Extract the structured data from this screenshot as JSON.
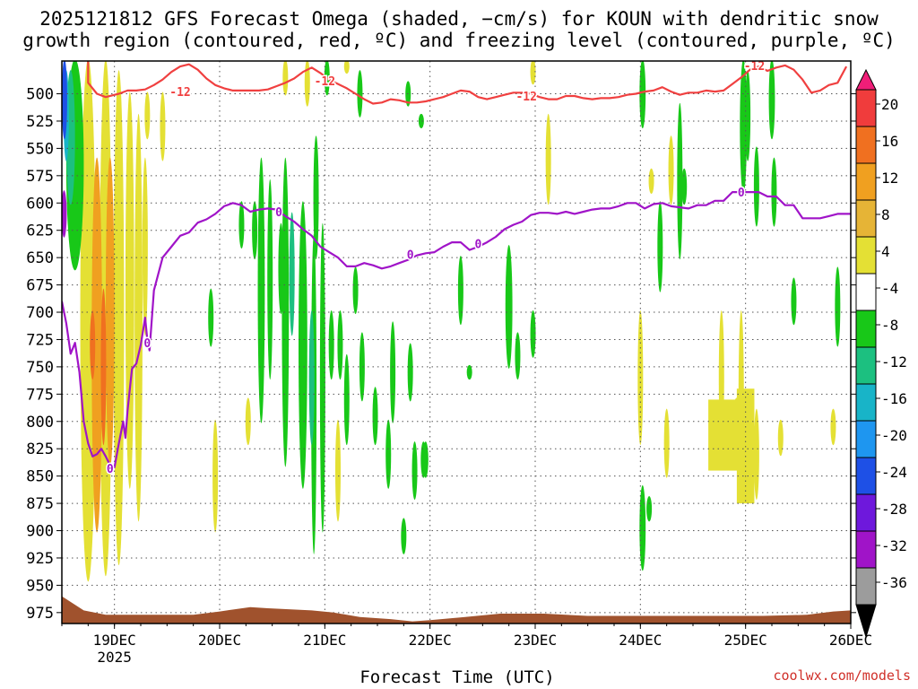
{
  "title_line1": "2025121812 GFS Forecast Omega (shaded, −cm/s) for KOUN with dendritic snow",
  "title_line2": "growth region (contoured, red, ºC) and freezing level (contoured, purple, ºC)",
  "xaxis_title": "Forecast Time (UTC)",
  "credit": "coolwx.com/models",
  "chart_data": {
    "type": "heatmap",
    "title": "2025121812 GFS Forecast Omega (shaded, −cm/s) for KOUN with dendritic snow growth region (contoured, red, ºC) and freezing level (contoured, purple, ºC)",
    "xlabel": "Forecast Time (UTC)",
    "ylabel": "",
    "x_ticks": [
      {
        "label": "19DEC",
        "sub": "2025",
        "t": 12
      },
      {
        "label": "20DEC",
        "sub": "",
        "t": 36
      },
      {
        "label": "21DEC",
        "sub": "",
        "t": 60
      },
      {
        "label": "22DEC",
        "sub": "",
        "t": 84
      },
      {
        "label": "23DEC",
        "sub": "",
        "t": 108
      },
      {
        "label": "24DEC",
        "sub": "",
        "t": 132
      },
      {
        "label": "25DEC",
        "sub": "",
        "t": 156
      },
      {
        "label": "26DEC",
        "sub": "",
        "t": 180
      }
    ],
    "xlim_hours": [
      0,
      180
    ],
    "y_ticks": [
      500,
      525,
      550,
      575,
      600,
      625,
      650,
      675,
      700,
      725,
      750,
      775,
      800,
      825,
      850,
      875,
      900,
      925,
      950,
      975
    ],
    "ylim_hpa": [
      470,
      985
    ],
    "grid": true,
    "colorbar": {
      "labels": [
        "20",
        "16",
        "12",
        "8",
        "4",
        "-4",
        "-8",
        "-12",
        "-16",
        "-20",
        "-24",
        "-28",
        "-32",
        "-36"
      ],
      "colors": [
        "#f01e78",
        "#f03c3c",
        "#f07020",
        "#f0a020",
        "#e6b436",
        "#e4e034",
        "#ffffff",
        "#18c818",
        "#1cc080",
        "#18b4c8",
        "#1e96f0",
        "#1e50e6",
        "#6e18dc",
        "#a014c8",
        "#9c9c9c",
        "#000000"
      ],
      "colors_note": "top triangle to bottom triangle"
    },
    "series": [
      {
        "name": "dendritic snow growth region",
        "color": "#f04040",
        "labels": [
          "-12",
          "-12",
          "-12",
          "-12"
        ],
        "points": [
          [
            6,
            468
          ],
          [
            6,
            490
          ],
          [
            8,
            500
          ],
          [
            10,
            503
          ],
          [
            13,
            500
          ],
          [
            15,
            497
          ],
          [
            17,
            497
          ],
          [
            19,
            496
          ],
          [
            21,
            492
          ],
          [
            23,
            487
          ],
          [
            25,
            480
          ],
          [
            27,
            475
          ],
          [
            29,
            473
          ],
          [
            31,
            478
          ],
          [
            33,
            486
          ],
          [
            35,
            492
          ],
          [
            37,
            495
          ],
          [
            39,
            497
          ],
          [
            41,
            497
          ],
          [
            43,
            497
          ],
          [
            45,
            497
          ],
          [
            47,
            496
          ],
          [
            49,
            493
          ],
          [
            51,
            490
          ],
          [
            53,
            486
          ],
          [
            55,
            480
          ],
          [
            57,
            476
          ],
          [
            59,
            481
          ],
          [
            61,
            487
          ],
          [
            63,
            491
          ],
          [
            65,
            495
          ],
          [
            67,
            500
          ],
          [
            69,
            505
          ],
          [
            71,
            509
          ],
          [
            73,
            508
          ],
          [
            75,
            505
          ],
          [
            77,
            506
          ],
          [
            79,
            508
          ],
          [
            81,
            508
          ],
          [
            83,
            507
          ],
          [
            85,
            505
          ],
          [
            87,
            503
          ],
          [
            89,
            500
          ],
          [
            91,
            497
          ],
          [
            93,
            498
          ],
          [
            95,
            503
          ],
          [
            97,
            505
          ],
          [
            99,
            503
          ],
          [
            101,
            501
          ],
          [
            103,
            499
          ],
          [
            105,
            499
          ],
          [
            107,
            500
          ],
          [
            109,
            503
          ],
          [
            111,
            505
          ],
          [
            113,
            505
          ],
          [
            115,
            502
          ],
          [
            117,
            502
          ],
          [
            119,
            504
          ],
          [
            121,
            505
          ],
          [
            123,
            504
          ],
          [
            125,
            504
          ],
          [
            127,
            503
          ],
          [
            129,
            501
          ],
          [
            131,
            500
          ],
          [
            133,
            498
          ],
          [
            135,
            497
          ],
          [
            137,
            494
          ],
          [
            139,
            498
          ],
          [
            141,
            501
          ],
          [
            143,
            499
          ],
          [
            145,
            499
          ],
          [
            147,
            497
          ],
          [
            149,
            498
          ],
          [
            151,
            497
          ],
          [
            153,
            491
          ],
          [
            155,
            485
          ],
          [
            157,
            478
          ],
          [
            159,
            475
          ],
          [
            161,
            479
          ],
          [
            163,
            476
          ],
          [
            165,
            474
          ],
          [
            167,
            478
          ],
          [
            169,
            487
          ],
          [
            171,
            499
          ],
          [
            173,
            497
          ],
          [
            175,
            492
          ],
          [
            177,
            490
          ],
          [
            179,
            475
          ]
        ]
      },
      {
        "name": "freezing level",
        "color": "#a014c8",
        "labels": [
          "0",
          "0",
          "0",
          "0",
          "0",
          "0"
        ],
        "points": [
          [
            0,
            690
          ],
          [
            1,
            710
          ],
          [
            2,
            738
          ],
          [
            3,
            728
          ],
          [
            4,
            755
          ],
          [
            5,
            800
          ],
          [
            6,
            820
          ],
          [
            7,
            832
          ],
          [
            8,
            830
          ],
          [
            9,
            825
          ],
          [
            10,
            832
          ],
          [
            11,
            840
          ],
          [
            12,
            842
          ],
          [
            13,
            820
          ],
          [
            14,
            800
          ],
          [
            14.5,
            815
          ],
          [
            15,
            790
          ],
          [
            16,
            752
          ],
          [
            17,
            747
          ],
          [
            18,
            730
          ],
          [
            19,
            705
          ],
          [
            19.5,
            725
          ],
          [
            20,
            735
          ],
          [
            21,
            680
          ],
          [
            23,
            650
          ],
          [
            25,
            640
          ],
          [
            27,
            630
          ],
          [
            29,
            627
          ],
          [
            31,
            618
          ],
          [
            33,
            615
          ],
          [
            35,
            610
          ],
          [
            37,
            603
          ],
          [
            39,
            600
          ],
          [
            41,
            602
          ],
          [
            43,
            608
          ],
          [
            45,
            606
          ],
          [
            47,
            605
          ],
          [
            49,
            606
          ],
          [
            51,
            612
          ],
          [
            53,
            617
          ],
          [
            55,
            624
          ],
          [
            57,
            630
          ],
          [
            59,
            640
          ],
          [
            61,
            645
          ],
          [
            63,
            650
          ],
          [
            65,
            658
          ],
          [
            67,
            658
          ],
          [
            69,
            655
          ],
          [
            71,
            657
          ],
          [
            73,
            660
          ],
          [
            75,
            658
          ],
          [
            77,
            655
          ],
          [
            79,
            652
          ],
          [
            81,
            648
          ],
          [
            83,
            646
          ],
          [
            85,
            645
          ],
          [
            87,
            640
          ],
          [
            89,
            636
          ],
          [
            91,
            636
          ],
          [
            93,
            643
          ],
          [
            95,
            640
          ],
          [
            97,
            636
          ],
          [
            99,
            631
          ],
          [
            101,
            624
          ],
          [
            103,
            620
          ],
          [
            105,
            617
          ],
          [
            107,
            611
          ],
          [
            109,
            609
          ],
          [
            111,
            609
          ],
          [
            113,
            610
          ],
          [
            115,
            608
          ],
          [
            117,
            610
          ],
          [
            119,
            608
          ],
          [
            121,
            606
          ],
          [
            123,
            605
          ],
          [
            125,
            605
          ],
          [
            127,
            603
          ],
          [
            129,
            600
          ],
          [
            131,
            600
          ],
          [
            133,
            605
          ],
          [
            135,
            601
          ],
          [
            137,
            600
          ],
          [
            139,
            603
          ],
          [
            141,
            604
          ],
          [
            143,
            605
          ],
          [
            145,
            602
          ],
          [
            147,
            602
          ],
          [
            149,
            598
          ],
          [
            151,
            598
          ],
          [
            153,
            590
          ],
          [
            155,
            590
          ],
          [
            157,
            590
          ],
          [
            159,
            590
          ],
          [
            161,
            594
          ],
          [
            163,
            594
          ],
          [
            165,
            602
          ],
          [
            167,
            602
          ],
          [
            169,
            614
          ],
          [
            171,
            614
          ],
          [
            173,
            614
          ],
          [
            175,
            612
          ],
          [
            177,
            610
          ],
          [
            179,
            610
          ],
          [
            180,
            610
          ]
        ]
      },
      {
        "name": "terrain",
        "color": "#a0522d",
        "points": [
          [
            0,
            960
          ],
          [
            5,
            973
          ],
          [
            10,
            977
          ],
          [
            20,
            977
          ],
          [
            30,
            977
          ],
          [
            36,
            974
          ],
          [
            43,
            970
          ],
          [
            47,
            971
          ],
          [
            57,
            973
          ],
          [
            62,
            975
          ],
          [
            68,
            979
          ],
          [
            75,
            981
          ],
          [
            80,
            983
          ],
          [
            84,
            982
          ],
          [
            92,
            979
          ],
          [
            100,
            976
          ],
          [
            110,
            976
          ],
          [
            120,
            978
          ],
          [
            130,
            978
          ],
          [
            140,
            978
          ],
          [
            150,
            978
          ],
          [
            160,
            978
          ],
          [
            170,
            977
          ],
          [
            176,
            974
          ],
          [
            180,
            973
          ]
        ]
      }
    ],
    "shaded_regions": [
      {
        "name": "upward motion 4 to 8",
        "color": "#e4e034"
      },
      {
        "name": "downward motion -4 to -8",
        "color": "#18c818"
      },
      {
        "name": "strong upward motion 8 to 16",
        "color": "#f0a020"
      },
      {
        "name": "strong downward motion -8 to -24",
        "color": "#1cc080"
      }
    ]
  }
}
